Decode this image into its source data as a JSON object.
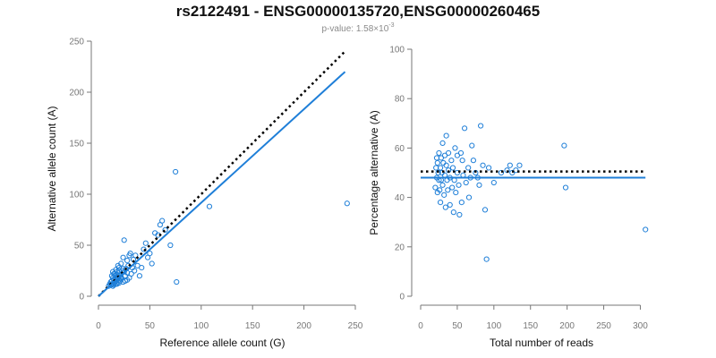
{
  "page": {
    "title": "rs2122491 - ENSG00000135720,ENSG00000260465",
    "pvalue_prefix": "p-value: 1.58×10",
    "pvalue_exponent": "-3"
  },
  "colors": {
    "points": "#1f7fd8",
    "fit": "#1f7fd8",
    "reference": "#000000",
    "axis": "#777777"
  },
  "chart_data": [
    {
      "type": "scatter",
      "xlabel": "Reference allele count (G)",
      "ylabel": "Alternative allele count (A)",
      "xlim": [
        0,
        250
      ],
      "ylim": [
        0,
        250
      ],
      "xticks": [
        0,
        50,
        100,
        150,
        200,
        250
      ],
      "yticks": [
        0,
        50,
        100,
        150,
        200,
        250
      ],
      "lines": [
        {
          "name": "expected",
          "style": "dotted",
          "color": "#000000",
          "x": [
            0,
            240
          ],
          "y": [
            0,
            240
          ]
        },
        {
          "name": "fit",
          "style": "solid",
          "color": "#1f7fd8",
          "x": [
            0,
            240
          ],
          "y": [
            0,
            220
          ]
        }
      ],
      "series": [
        {
          "name": "samples",
          "x": [
            10,
            11,
            12,
            12,
            13,
            13,
            14,
            14,
            15,
            15,
            15,
            16,
            16,
            17,
            17,
            18,
            18,
            19,
            19,
            20,
            20,
            21,
            21,
            22,
            22,
            23,
            24,
            24,
            25,
            26,
            27,
            28,
            29,
            30,
            31,
            32,
            33,
            34,
            35,
            36,
            38,
            40,
            42,
            44,
            46,
            48,
            50,
            52,
            55,
            58,
            60,
            62,
            65,
            70,
            75,
            76,
            108,
            242,
            13,
            14,
            15,
            16,
            17,
            18,
            20,
            22,
            24,
            26,
            28,
            30,
            18,
            20,
            22,
            25,
            28
          ],
          "y": [
            10,
            12,
            11,
            14,
            12,
            15,
            10,
            18,
            12,
            16,
            22,
            14,
            20,
            12,
            26,
            16,
            24,
            18,
            30,
            13,
            28,
            15,
            20,
            17,
            32,
            25,
            14,
            38,
            55,
            20,
            27,
            16,
            30,
            18,
            42,
            22,
            28,
            36,
            25,
            40,
            30,
            20,
            28,
            46,
            52,
            38,
            42,
            32,
            62,
            60,
            70,
            74,
            65,
            50,
            122,
            14,
            88,
            91,
            20,
            24,
            11,
            22,
            17,
            12,
            25,
            19,
            27,
            15,
            23,
            40,
            21,
            16,
            18,
            24,
            35
          ]
        }
      ]
    },
    {
      "type": "scatter",
      "xlabel": "Total number of reads",
      "ylabel": "Percentage alternative (A)",
      "xlim": [
        0,
        330
      ],
      "ylim": [
        0,
        100
      ],
      "xticks": [
        0,
        50,
        100,
        150,
        200,
        250,
        300
      ],
      "yticks": [
        0,
        20,
        40,
        60,
        80,
        100
      ],
      "lines": [
        {
          "name": "expected",
          "style": "dotted",
          "color": "#000000",
          "x": [
            0,
            307
          ],
          "y": [
            50.5,
            50.5
          ]
        },
        {
          "name": "fit",
          "style": "solid",
          "color": "#1f7fd8",
          "x": [
            0,
            307
          ],
          "y": [
            48,
            48
          ]
        }
      ],
      "series": [
        {
          "name": "samples",
          "x": [
            20,
            21,
            22,
            22,
            23,
            23,
            24,
            25,
            25,
            26,
            27,
            27,
            28,
            28,
            29,
            30,
            30,
            31,
            32,
            33,
            33,
            34,
            35,
            35,
            36,
            37,
            38,
            38,
            40,
            40,
            42,
            43,
            44,
            45,
            46,
            47,
            48,
            50,
            50,
            52,
            53,
            55,
            56,
            57,
            58,
            60,
            62,
            65,
            66,
            68,
            70,
            72,
            75,
            78,
            80,
            82,
            85,
            88,
            90,
            93,
            100,
            110,
            118,
            122,
            125,
            130,
            135,
            196,
            198,
            307
          ],
          "y": [
            44,
            52,
            48,
            56,
            42,
            54,
            50,
            47,
            58,
            43,
            52,
            38,
            56,
            47,
            50,
            62,
            45,
            54,
            41,
            49,
            57,
            36,
            53,
            65,
            47,
            43,
            58,
            51,
            48,
            37,
            55,
            44,
            52,
            34,
            47,
            60,
            42,
            57,
            50,
            45,
            33,
            58,
            38,
            55,
            49,
            68,
            46,
            52,
            40,
            48,
            61,
            55,
            50,
            48,
            45,
            69,
            53,
            35,
            15,
            52,
            46,
            50,
            51,
            53,
            50,
            51,
            53,
            61,
            44,
            27
          ]
        }
      ]
    }
  ]
}
